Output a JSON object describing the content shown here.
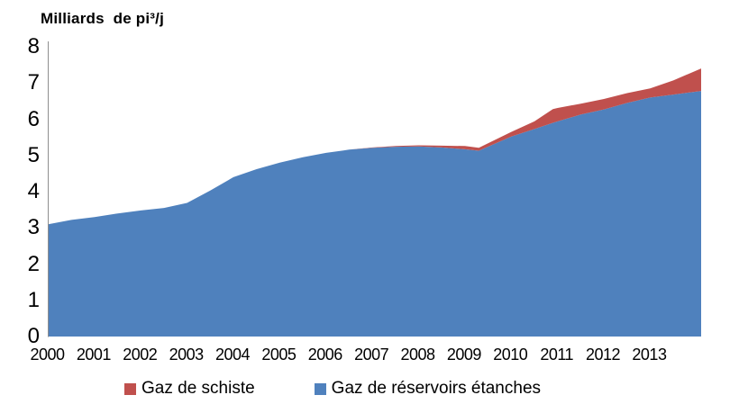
{
  "chart_data": {
    "type": "area",
    "stacked": true,
    "title": "Milliards  de pi³/j",
    "xlabel": "",
    "ylabel": "Milliards de pi³/j",
    "grid": false,
    "legend_position": "bottom",
    "xlim": [
      2000,
      2014.1
    ],
    "ylim": [
      0,
      8
    ],
    "yticks": [
      0,
      1,
      2,
      3,
      4,
      5,
      6,
      7,
      8
    ],
    "xticks": [
      2000,
      2001,
      2002,
      2003,
      2004,
      2005,
      2006,
      2007,
      2008,
      2009,
      2010,
      2011,
      2012,
      2013
    ],
    "x": [
      2000,
      2000.5,
      2001,
      2001.5,
      2002,
      2002.5,
      2003,
      2003.5,
      2004,
      2004.5,
      2005,
      2005.5,
      2006,
      2006.5,
      2007,
      2007.5,
      2008,
      2008.5,
      2009,
      2009.3,
      2010,
      2010.5,
      2010.9,
      2011,
      2011.5,
      2012,
      2012.5,
      2013,
      2013.5,
      2014.1
    ],
    "series": [
      {
        "id": "gaz-reservoirs-etanches",
        "name": "Gaz de réservoirs étanches",
        "color": "#4F81BD",
        "values": [
          3.1,
          3.22,
          3.3,
          3.4,
          3.48,
          3.55,
          3.69,
          4.03,
          4.4,
          4.62,
          4.8,
          4.95,
          5.07,
          5.16,
          5.21,
          5.24,
          5.25,
          5.22,
          5.17,
          5.13,
          5.52,
          5.73,
          5.9,
          5.94,
          6.13,
          6.27,
          6.45,
          6.6,
          6.68,
          6.78
        ]
      },
      {
        "id": "gaz-de-schiste",
        "name": "Gaz de schiste",
        "color": "#C0504D",
        "values": [
          0,
          0,
          0,
          0,
          0,
          0,
          0,
          0,
          0,
          0,
          0,
          0,
          0,
          0,
          0.01,
          0.02,
          0.03,
          0.05,
          0.09,
          0.08,
          0.13,
          0.21,
          0.38,
          0.37,
          0.3,
          0.29,
          0.27,
          0.25,
          0.39,
          0.62
        ]
      }
    ],
    "axis_color": "#8F8F8F"
  },
  "legend": {
    "items": [
      {
        "label": "Gaz de schiste",
        "series_index": 1
      },
      {
        "label": "Gaz de réservoirs étanches",
        "series_index": 0
      }
    ]
  }
}
